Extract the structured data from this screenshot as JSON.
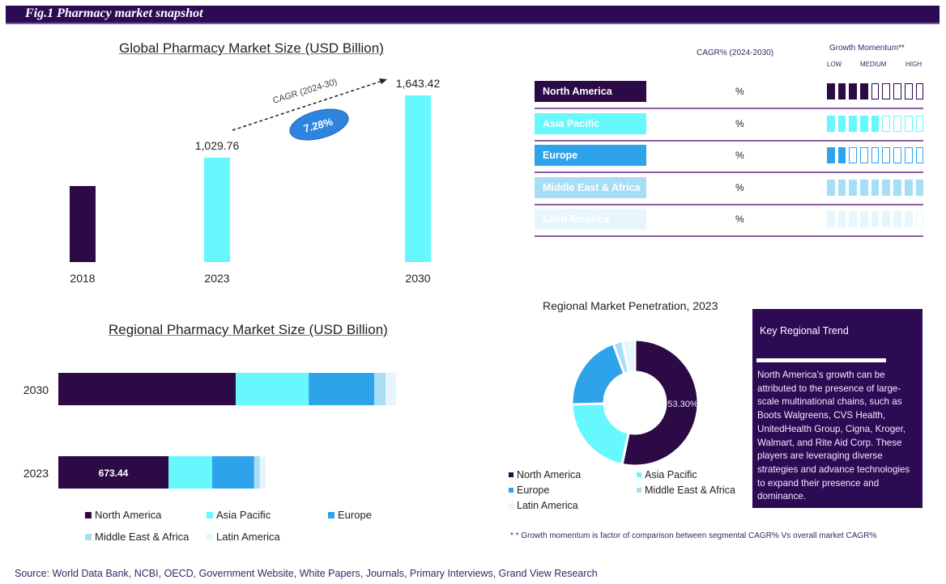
{
  "header": {
    "title": "Fig.1  Pharmacy market snapshot"
  },
  "colors": {
    "north_america": "#2b0a45",
    "asia_pacific": "#66f8fd",
    "europe": "#2fa3ea",
    "middle_east_africa": "#a6def6",
    "latin_america": "#e6f6fc",
    "header_bg": "#2d0a54",
    "cagr_badge": "#2f84e0"
  },
  "chart_data": [
    {
      "type": "bar",
      "title": "Global Pharmacy Market Size (USD Billion)",
      "categories": [
        "2018",
        "2023",
        "2030"
      ],
      "values": [
        750,
        1029.76,
        1643.42
      ],
      "data_labels": [
        "",
        "1,029.76",
        "1,643.42"
      ],
      "bar_colors": [
        "#2b0a45",
        "#66f8fd",
        "#66f8fd"
      ],
      "xlabel": "",
      "ylabel": "",
      "ylim": [
        0,
        1643.42
      ],
      "grid": false,
      "annotation": {
        "label": "CAGR (2024-30)",
        "value": "7.28%"
      }
    },
    {
      "type": "bar",
      "orientation": "horizontal-stacked",
      "title": "Regional Pharmacy Market Size (USD Billion)",
      "categories": [
        "2030",
        "2023"
      ],
      "series": [
        {
          "name": "North America",
          "values": [
            1085,
            673.44
          ]
        },
        {
          "name": "Asia Pacific",
          "values": [
            446,
            267
          ]
        },
        {
          "name": "Europe",
          "values": [
            401,
            257
          ]
        },
        {
          "name": "Middle East & Africa",
          "values": [
            69,
            35
          ]
        },
        {
          "name": "Latin America",
          "values": [
            64,
            35
          ]
        }
      ],
      "data_labels": {
        "2023": {
          "North America": "673.44"
        }
      },
      "xlim": [
        0,
        2065
      ],
      "grid": false,
      "legend": "bottom"
    },
    {
      "type": "pie",
      "variant": "donut",
      "title": "Regional Market Penetration, 2023",
      "labels": [
        "North America",
        "Asia Pacific",
        "Europe",
        "Middle East & Africa",
        "Latin America"
      ],
      "values": [
        53.3,
        21.3,
        19.8,
        2.4,
        3.2
      ],
      "data_labels": [
        "53.30%",
        "",
        "",
        "",
        ""
      ],
      "legend": "bottom"
    }
  ],
  "regions_table": {
    "cagr_header": "CAGR% (2024-2030)",
    "momentum_header": "Growth Momentum**",
    "momentum_scale": [
      "LOW",
      "MEDIUM",
      "HIGH"
    ],
    "total_blocks": 9,
    "rows": [
      {
        "region": "North America",
        "cagr": "%",
        "momentum_filled": 4
      },
      {
        "region": "Asia Pacific",
        "cagr": "%",
        "momentum_filled": 5
      },
      {
        "region": "Europe",
        "cagr": "%",
        "momentum_filled": 2
      },
      {
        "region": "Middle East & Africa",
        "cagr": "%",
        "momentum_filled": 9
      },
      {
        "region": "Latin America",
        "cagr": "%",
        "momentum_filled": 8
      }
    ]
  },
  "key_trend": {
    "title": "Key Regional Trend",
    "text": "North America’s growth can be attributed to the presence of large-scale multinational chains, such as Boots Walgreens, CVS Health, UnitedHealth Group, Cigna, Kroger, Walmart, and Rite Aid Corp. These players are leveraging diverse strategies and advance technologies to expand their presence and dominance."
  },
  "footnote": "* * Growth momentum is factor of comparison between segmental CAGR% Vs overall market CAGR%",
  "source": "Source: World Data Bank, NCBI, OECD, Government Website, White Papers, Journals, Primary Interviews, Grand View Research"
}
